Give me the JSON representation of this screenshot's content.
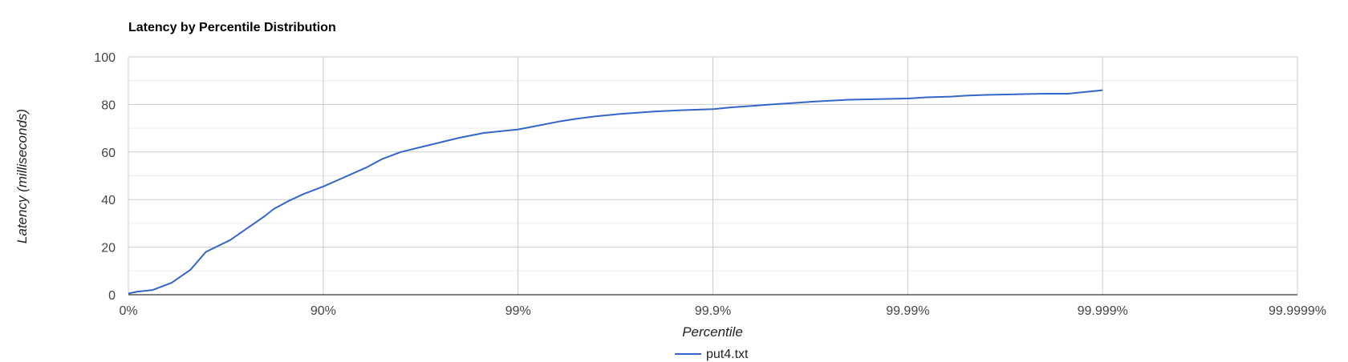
{
  "chart_data": {
    "type": "line",
    "title": "Latency by Percentile Distribution",
    "xlabel": "Percentile",
    "ylabel": "Latency (milliseconds)",
    "x_scale": "log-percentile",
    "x_ticks": [
      "0%",
      "90%",
      "99%",
      "99.9%",
      "99.99%",
      "99.999%",
      "99.9999%"
    ],
    "y_ticks": [
      "0",
      "20",
      "40",
      "60",
      "80",
      "100"
    ],
    "ylim": [
      0,
      100
    ],
    "grid": true,
    "legend_position": "bottom",
    "series": [
      {
        "name": "put4.txt",
        "color": "#3366cc",
        "x": [
          0,
          10,
          25,
          40,
          52,
          60,
          70,
          75,
          80,
          82,
          85,
          87.5,
          90,
          92,
          94,
          95,
          96,
          97,
          98,
          98.5,
          99,
          99.2,
          99.4,
          99.5,
          99.6,
          99.7,
          99.8,
          99.85,
          99.9,
          99.92,
          99.94,
          99.95,
          99.96,
          99.97,
          99.98,
          99.985,
          99.99,
          99.992,
          99.994,
          99.995,
          99.996,
          99.997,
          99.998,
          99.9985,
          99.999
        ],
        "y": [
          0.5,
          1.3,
          2.0,
          5.0,
          10.5,
          18.0,
          23.0,
          27.5,
          33.0,
          36.0,
          39.5,
          42.5,
          45.5,
          49.0,
          53.5,
          57.0,
          60.0,
          62.5,
          66.0,
          68.0,
          69.5,
          71.0,
          73.0,
          74.0,
          75.0,
          76.0,
          77.0,
          77.5,
          78.0,
          78.8,
          79.5,
          80.0,
          80.5,
          81.2,
          82.0,
          82.2,
          82.5,
          83.0,
          83.3,
          83.7,
          84.0,
          84.2,
          84.5,
          84.5,
          86.0
        ]
      }
    ]
  }
}
